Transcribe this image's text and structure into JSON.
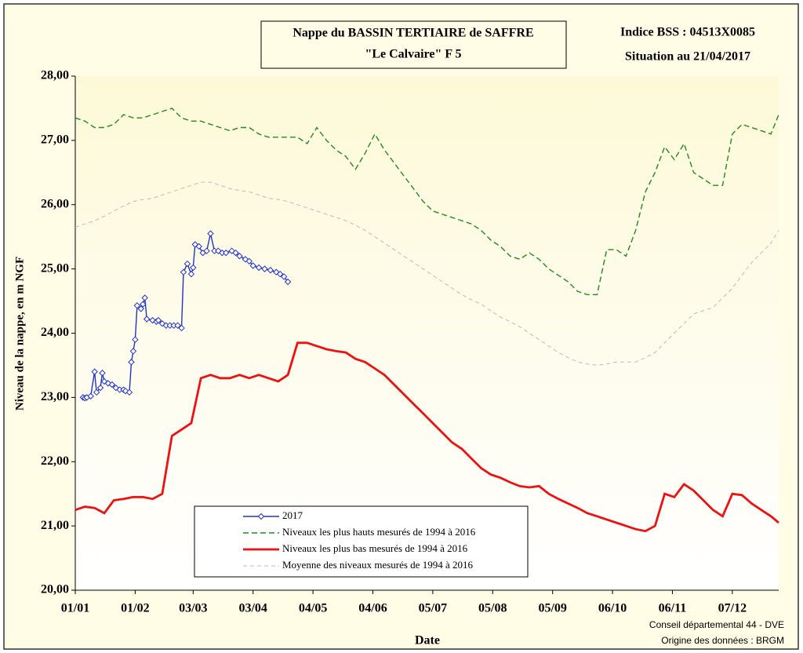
{
  "chart_data": {
    "type": "line",
    "title": "Nappe du BASSIN TERTIAIRE de SAFFRE",
    "subtitle": "\"Le Calvaire\" F 5",
    "bss_index": "Indice BSS : 04513X0085",
    "situation": "Situation au 21/04/2017",
    "y_label": "Niveau de la nappe, en m NGF",
    "x_label": "Date",
    "credits": [
      "Conseil départemental 44 - DVE",
      "Origine des données : BRGM"
    ],
    "xlim": [
      0,
      364
    ],
    "ylim": [
      20,
      28
    ],
    "xticks": [
      {
        "value": 0,
        "label": "01/01"
      },
      {
        "value": 31,
        "label": "01/02"
      },
      {
        "value": 61,
        "label": "03/03"
      },
      {
        "value": 92,
        "label": "03/04"
      },
      {
        "value": 123,
        "label": "04/05"
      },
      {
        "value": 154,
        "label": "04/06"
      },
      {
        "value": 185,
        "label": "05/07"
      },
      {
        "value": 216,
        "label": "05/08"
      },
      {
        "value": 247,
        "label": "05/09"
      },
      {
        "value": 278,
        "label": "06/10"
      },
      {
        "value": 309,
        "label": "06/11"
      },
      {
        "value": 340,
        "label": "07/12"
      }
    ],
    "yticks": [
      {
        "value": 20,
        "label": "20,00"
      },
      {
        "value": 21,
        "label": "21,00"
      },
      {
        "value": 22,
        "label": "22,00"
      },
      {
        "value": 23,
        "label": "23,00"
      },
      {
        "value": 24,
        "label": "24,00"
      },
      {
        "value": 25,
        "label": "25,00"
      },
      {
        "value": 26,
        "label": "26,00"
      },
      {
        "value": 27,
        "label": "27,00"
      },
      {
        "value": 28,
        "label": "28,00"
      }
    ],
    "x": [
      0,
      5,
      10,
      15,
      20,
      25,
      30,
      35,
      40,
      45,
      50,
      55,
      60,
      65,
      70,
      75,
      80,
      85,
      90,
      95,
      100,
      105,
      110,
      115,
      120,
      125,
      130,
      135,
      140,
      145,
      150,
      155,
      160,
      165,
      170,
      175,
      180,
      185,
      190,
      195,
      200,
      205,
      210,
      215,
      220,
      225,
      230,
      235,
      240,
      245,
      250,
      255,
      260,
      265,
      270,
      275,
      280,
      285,
      290,
      295,
      300,
      305,
      310,
      315,
      320,
      325,
      330,
      335,
      340,
      345,
      350,
      355,
      360,
      364
    ],
    "series": [
      {
        "name": "2017",
        "color": "#2233cc",
        "marker": "diamond",
        "dash": false,
        "x": [
          4,
          5,
          6,
          8,
          10,
          11,
          13,
          14,
          15,
          17,
          19,
          21,
          23,
          25,
          26,
          28,
          29,
          30,
          31,
          32,
          34,
          35,
          36,
          37,
          40,
          42,
          43,
          45,
          47,
          49,
          51,
          53,
          55,
          56,
          58,
          60,
          61,
          62,
          64,
          66,
          68,
          70,
          72,
          74,
          76,
          78,
          81,
          83,
          85,
          88,
          90,
          92,
          95,
          98,
          101,
          104,
          106,
          108,
          110
        ],
        "values": [
          23.0,
          22.99,
          23.0,
          23.02,
          23.4,
          23.08,
          23.15,
          23.38,
          23.25,
          23.22,
          23.2,
          23.15,
          23.12,
          23.12,
          23.1,
          23.08,
          23.55,
          23.72,
          23.9,
          24.43,
          24.38,
          24.45,
          24.55,
          24.22,
          24.2,
          24.18,
          24.2,
          24.15,
          24.12,
          24.12,
          24.12,
          24.12,
          24.08,
          24.95,
          25.08,
          24.92,
          25.02,
          25.38,
          25.35,
          25.25,
          25.28,
          25.55,
          25.28,
          25.28,
          25.25,
          25.25,
          25.28,
          25.25,
          25.2,
          25.15,
          25.12,
          25.05,
          25.02,
          25.0,
          24.98,
          24.95,
          24.92,
          24.88,
          24.8
        ]
      },
      {
        "name": "Niveaux les plus hauts mesurés de 1994 à 2016",
        "color": "#228b22",
        "dash": true,
        "values": [
          27.35,
          27.3,
          27.2,
          27.2,
          27.25,
          27.4,
          27.35,
          27.35,
          27.4,
          27.45,
          27.5,
          27.35,
          27.3,
          27.3,
          27.25,
          27.2,
          27.15,
          27.2,
          27.2,
          27.1,
          27.05,
          27.05,
          27.05,
          27.05,
          26.95,
          27.2,
          27.0,
          26.85,
          26.75,
          26.55,
          26.8,
          27.1,
          26.85,
          26.65,
          26.45,
          26.25,
          26.05,
          25.9,
          25.85,
          25.8,
          25.75,
          25.7,
          25.6,
          25.45,
          25.35,
          25.2,
          25.15,
          25.25,
          25.15,
          25.0,
          24.9,
          24.8,
          24.65,
          24.6,
          24.6,
          25.3,
          25.3,
          25.2,
          25.6,
          26.2,
          26.5,
          26.9,
          26.7,
          26.95,
          26.5,
          26.4,
          26.3,
          26.3,
          27.1,
          27.25,
          27.2,
          27.15,
          27.1,
          27.4
        ]
      },
      {
        "name": "Niveaux les plus bas mesurés de 1994 à 2016",
        "color": "#ee1111",
        "dash": false,
        "values": [
          21.25,
          21.3,
          21.28,
          21.2,
          21.4,
          21.42,
          21.45,
          21.45,
          21.42,
          21.5,
          22.4,
          22.5,
          22.6,
          23.3,
          23.35,
          23.3,
          23.3,
          23.35,
          23.3,
          23.35,
          23.3,
          23.25,
          23.35,
          23.85,
          23.85,
          23.8,
          23.75,
          23.72,
          23.7,
          23.6,
          23.55,
          23.45,
          23.35,
          23.2,
          23.05,
          22.9,
          22.75,
          22.6,
          22.45,
          22.3,
          22.2,
          22.05,
          21.9,
          21.8,
          21.75,
          21.68,
          21.62,
          21.6,
          21.62,
          21.5,
          21.42,
          21.35,
          21.28,
          21.2,
          21.15,
          21.1,
          21.05,
          21.0,
          20.95,
          20.92,
          21.0,
          21.5,
          21.45,
          21.65,
          21.55,
          21.4,
          21.25,
          21.15,
          21.5,
          21.48,
          21.35,
          21.25,
          21.15,
          21.05
        ]
      },
      {
        "name": "Moyenne des niveaux mesurés de 1994 à 2016",
        "color": "#bbbbbb",
        "dash": true,
        "values": [
          25.65,
          25.7,
          25.75,
          25.82,
          25.9,
          25.98,
          26.05,
          26.08,
          26.1,
          26.15,
          26.2,
          26.25,
          26.3,
          26.35,
          26.35,
          26.3,
          26.25,
          26.22,
          26.2,
          26.15,
          26.1,
          26.08,
          26.05,
          26.0,
          25.95,
          25.9,
          25.85,
          25.8,
          25.75,
          25.68,
          25.6,
          25.5,
          25.4,
          25.3,
          25.2,
          25.1,
          25.0,
          24.9,
          24.8,
          24.7,
          24.6,
          24.52,
          24.45,
          24.35,
          24.25,
          24.18,
          24.1,
          24.0,
          23.9,
          23.8,
          23.7,
          23.62,
          23.55,
          23.52,
          23.5,
          23.52,
          23.55,
          23.55,
          23.55,
          23.62,
          23.7,
          23.85,
          24.0,
          24.15,
          24.3,
          24.35,
          24.4,
          24.55,
          24.7,
          24.9,
          25.1,
          25.25,
          25.4,
          25.6
        ]
      }
    ]
  }
}
